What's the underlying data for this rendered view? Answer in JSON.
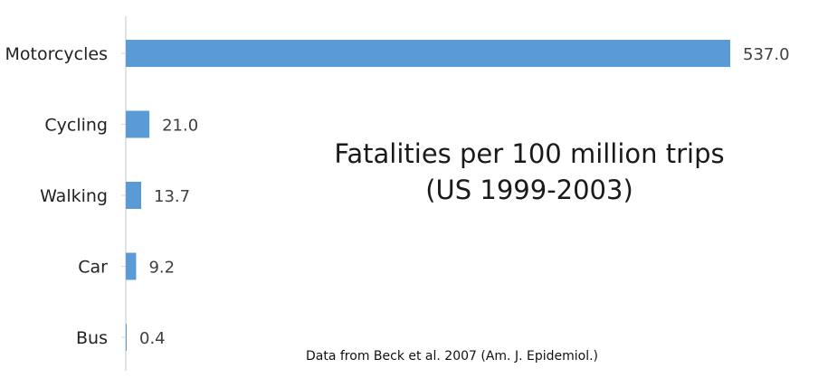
{
  "chart_data": {
    "type": "bar",
    "orientation": "horizontal",
    "categories": [
      "Motorcycles",
      "Cycling",
      "Walking",
      "Car",
      "Bus"
    ],
    "values": [
      537.0,
      21.0,
      13.7,
      9.2,
      0.4
    ],
    "value_labels": [
      "537.0",
      "21.0",
      "13.7",
      "9.2",
      "0.4"
    ],
    "title": [
      "Fatalities per 100 million trips",
      "(US 1999-2003)"
    ],
    "xlabel": "",
    "ylabel": "",
    "xlim": [
      0,
      537
    ],
    "grid": false,
    "legend": "none",
    "colors": {
      "bar": "#5b9bd5",
      "axis": "#d9d9d9",
      "label": "#222222",
      "value_label": "#404040"
    }
  },
  "note": "Data from Beck et al. 2007 (Am. J. Epidemiol.)"
}
